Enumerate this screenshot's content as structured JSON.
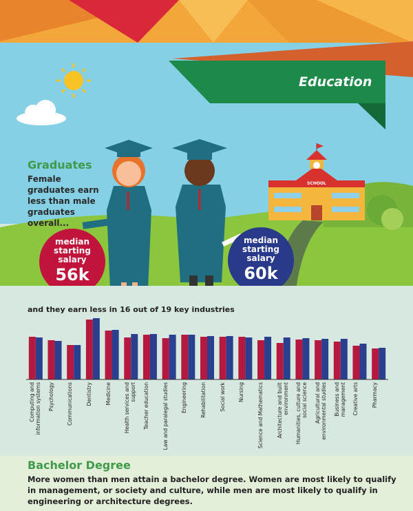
{
  "header": {
    "title": "Education"
  },
  "school_sign": "SCHOOL",
  "graduates": {
    "title": "Graduates",
    "text": "Female graduates earn less than male graduates overall...",
    "female": {
      "label": "median starting salary",
      "value": "56k"
    },
    "male": {
      "label": "median starting salary",
      "value": "60k"
    }
  },
  "chart_data": {
    "type": "bar",
    "title": "and they earn less in 16 out of 19 key industries",
    "categories": [
      "Computing and information systems",
      "Psychology",
      "Communications",
      "Dentistry",
      "Medicine",
      "Health services and support",
      "Teacher education",
      "Law and paralegal studies",
      "Engineering",
      "Rehabilitation",
      "Social work",
      "Nursing",
      "Science and Mathematics",
      "Architecture and built environment",
      "Humanities, culture and social science",
      "Agricultural and environmental studies",
      "Business and management",
      "Creative arts",
      "Pharmacy"
    ],
    "series": [
      {
        "color": "#b5193f",
        "values": [
          62,
          57,
          50,
          87,
          71,
          61,
          65,
          60,
          65,
          62,
          62,
          62,
          57,
          53,
          58,
          57,
          55,
          49,
          45
        ]
      },
      {
        "color": "#2b3f8f",
        "values": [
          61,
          56,
          50,
          89,
          72,
          66,
          66,
          65,
          65,
          63,
          63,
          61,
          62,
          61,
          60,
          59,
          59,
          52,
          46
        ]
      }
    ],
    "ylim": [
      0,
      100
    ]
  },
  "bachelor": {
    "title": "Bachelor Degree",
    "text": "More women than men attain a bachelor degree. Women are most likely to qualify in management, or society and culture, while men are most likely to qualify in engineering or architecture degrees."
  }
}
